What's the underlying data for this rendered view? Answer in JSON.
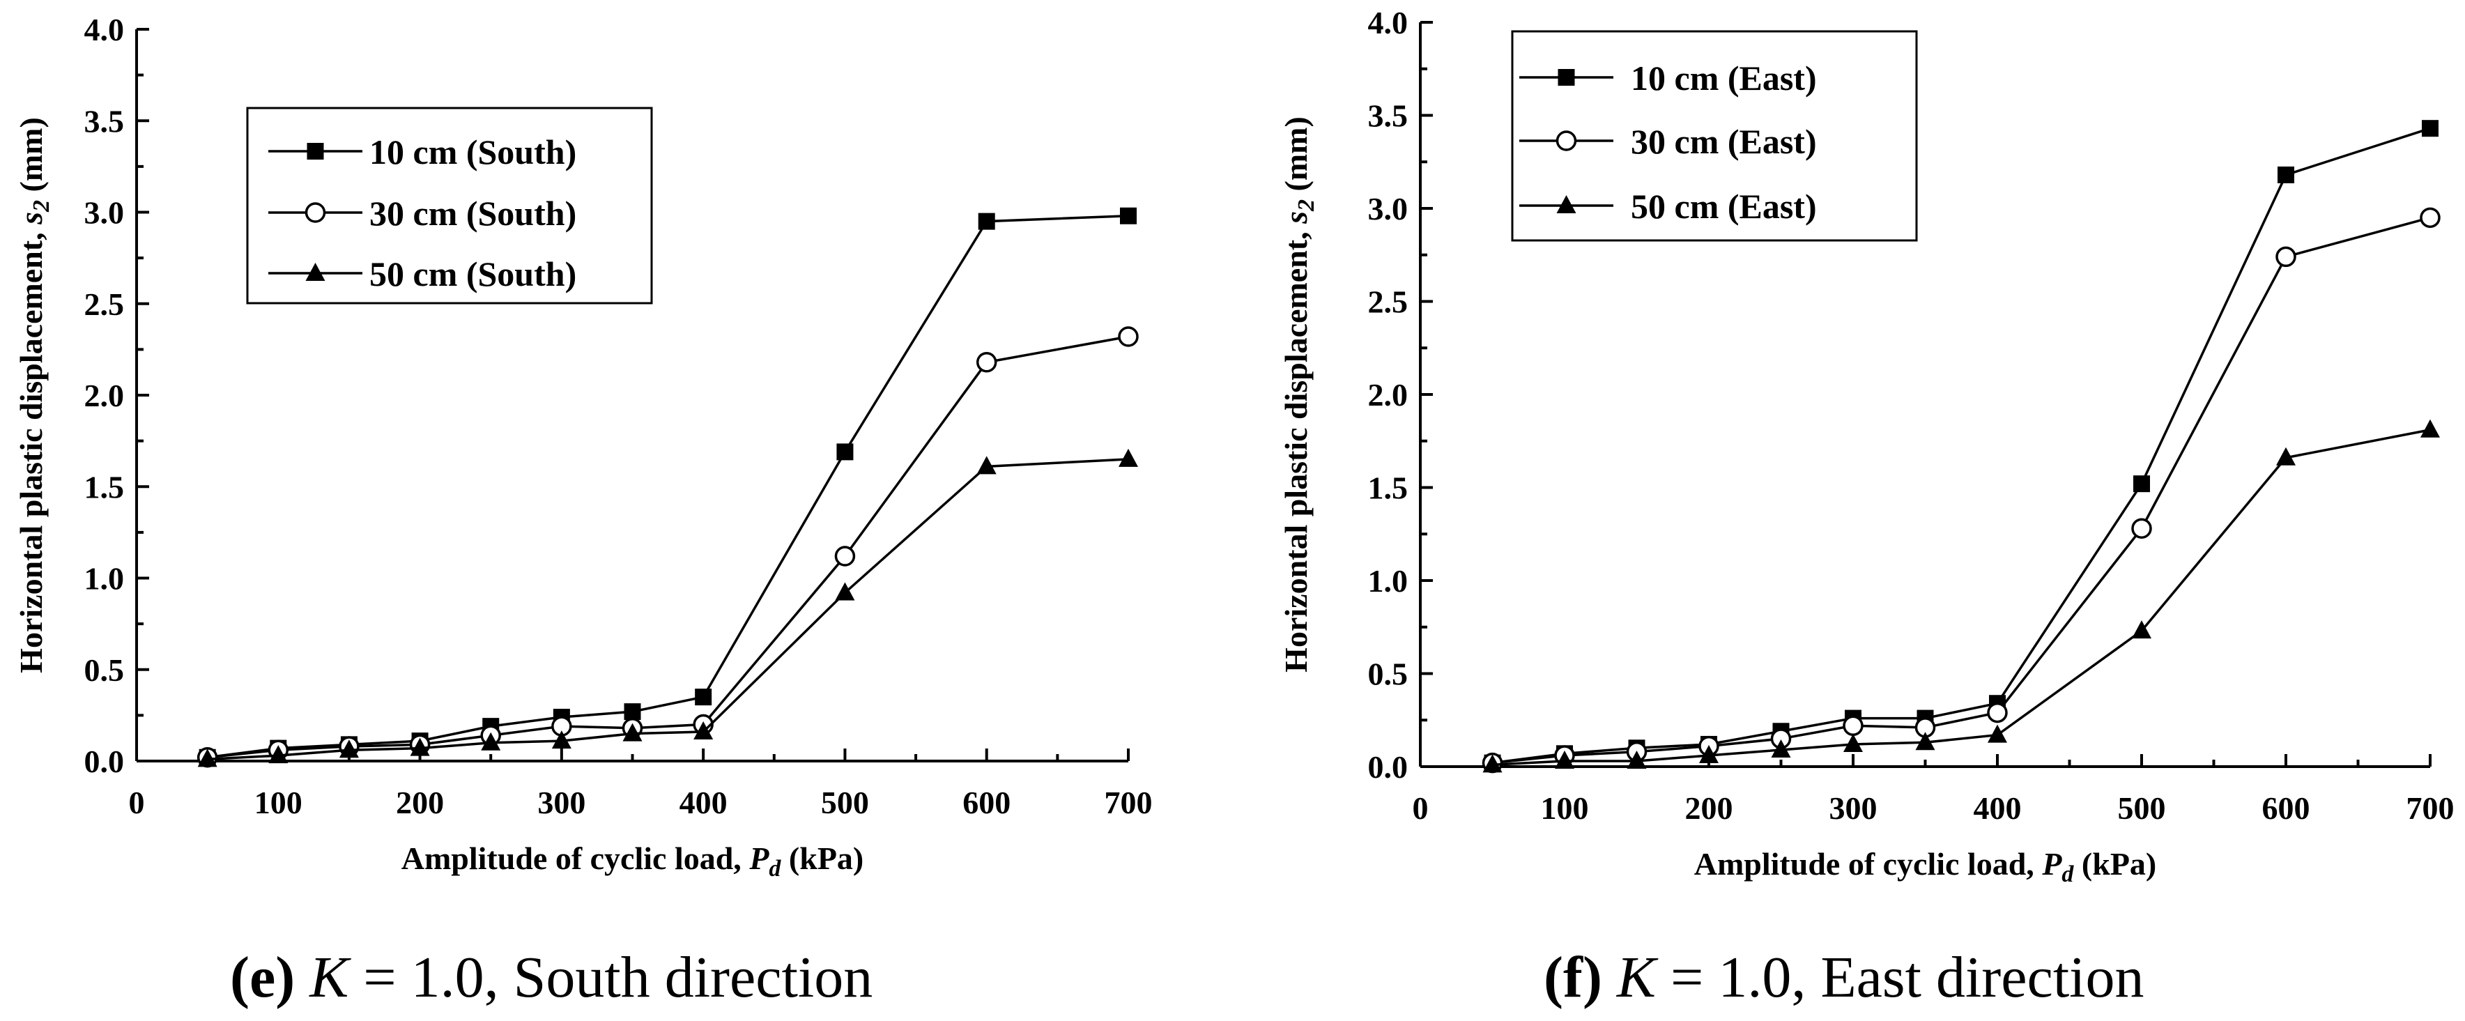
{
  "chart_data": [
    {
      "type": "line",
      "id": "e",
      "xlabel_parts": {
        "prefix": "Amplitude of cyclic load, ",
        "var": "P",
        "sub": "d",
        "suffix": " (kPa)"
      },
      "ylabel_parts": {
        "prefix": "Horizontal plastic displacement, ",
        "var": "s",
        "sub": "2",
        "suffix": " (mm)"
      },
      "xlim": [
        0,
        700
      ],
      "ylim": [
        0,
        4.0
      ],
      "xticks": [
        0,
        100,
        200,
        300,
        400,
        500,
        600,
        700
      ],
      "xtick_labels": [
        "0",
        "100",
        "200",
        "300",
        "400",
        "500",
        "600",
        "700"
      ],
      "yticks": [
        0,
        0.5,
        1.0,
        1.5,
        2.0,
        2.5,
        3.0,
        3.5,
        4.0
      ],
      "ytick_labels": [
        "0.0",
        "0.5",
        "1.0",
        "1.5",
        "2.0",
        "2.5",
        "3.0",
        "3.5",
        "4.0"
      ],
      "legend_position": "top-left",
      "x": [
        50,
        100,
        150,
        200,
        250,
        300,
        350,
        400,
        500,
        600,
        700
      ],
      "series": [
        {
          "name": "10 cm (South)",
          "marker": "square",
          "values": [
            0.02,
            0.07,
            0.09,
            0.11,
            0.19,
            0.24,
            0.27,
            0.35,
            1.69,
            2.95,
            2.98
          ]
        },
        {
          "name": "30 cm (South)",
          "marker": "circle",
          "values": [
            0.02,
            0.06,
            0.08,
            0.09,
            0.14,
            0.19,
            0.18,
            0.2,
            1.12,
            2.18,
            2.32
          ]
        },
        {
          "name": "50 cm (South)",
          "marker": "triangle",
          "values": [
            0.01,
            0.03,
            0.06,
            0.07,
            0.1,
            0.11,
            0.15,
            0.16,
            0.92,
            1.61,
            1.65
          ]
        }
      ],
      "caption": {
        "letter": "(e)",
        "k_var": "K",
        "k_value": " = 1.0, South direction"
      }
    },
    {
      "type": "line",
      "id": "f",
      "xlabel_parts": {
        "prefix": "Amplitude of cyclic load, ",
        "var": "P",
        "sub": "d",
        "suffix": " (kPa)"
      },
      "ylabel_parts": {
        "prefix": "Horizontal plastic displacement, ",
        "var": "s",
        "sub": "2",
        "suffix": " (mm)"
      },
      "xlim": [
        0,
        700
      ],
      "ylim": [
        0,
        4.0
      ],
      "xticks": [
        0,
        100,
        200,
        300,
        400,
        500,
        600,
        700
      ],
      "xtick_labels": [
        "0",
        "100",
        "200",
        "300",
        "400",
        "500",
        "600",
        "700"
      ],
      "yticks": [
        0,
        0.5,
        1.0,
        1.5,
        2.0,
        2.5,
        3.0,
        3.5,
        4.0
      ],
      "ytick_labels": [
        "0.0",
        "0.5",
        "1.0",
        "1.5",
        "2.0",
        "2.5",
        "3.0",
        "3.5",
        "4.0"
      ],
      "legend_position": "top-left",
      "x": [
        50,
        100,
        150,
        200,
        250,
        300,
        350,
        400,
        500,
        600,
        700
      ],
      "series": [
        {
          "name": "10 cm (East)",
          "marker": "square",
          "values": [
            0.02,
            0.07,
            0.1,
            0.12,
            0.19,
            0.26,
            0.26,
            0.34,
            1.52,
            3.18,
            3.43
          ]
        },
        {
          "name": "30 cm (East)",
          "marker": "circle",
          "values": [
            0.02,
            0.06,
            0.08,
            0.11,
            0.15,
            0.22,
            0.21,
            0.29,
            1.28,
            2.74,
            2.95
          ]
        },
        {
          "name": "50 cm (East)",
          "marker": "triangle",
          "values": [
            0.01,
            0.03,
            0.03,
            0.06,
            0.09,
            0.12,
            0.13,
            0.17,
            0.73,
            1.66,
            1.81
          ]
        }
      ],
      "caption": {
        "letter": "(f)",
        "k_var": "K",
        "k_value": " = 1.0, East direction"
      }
    }
  ]
}
